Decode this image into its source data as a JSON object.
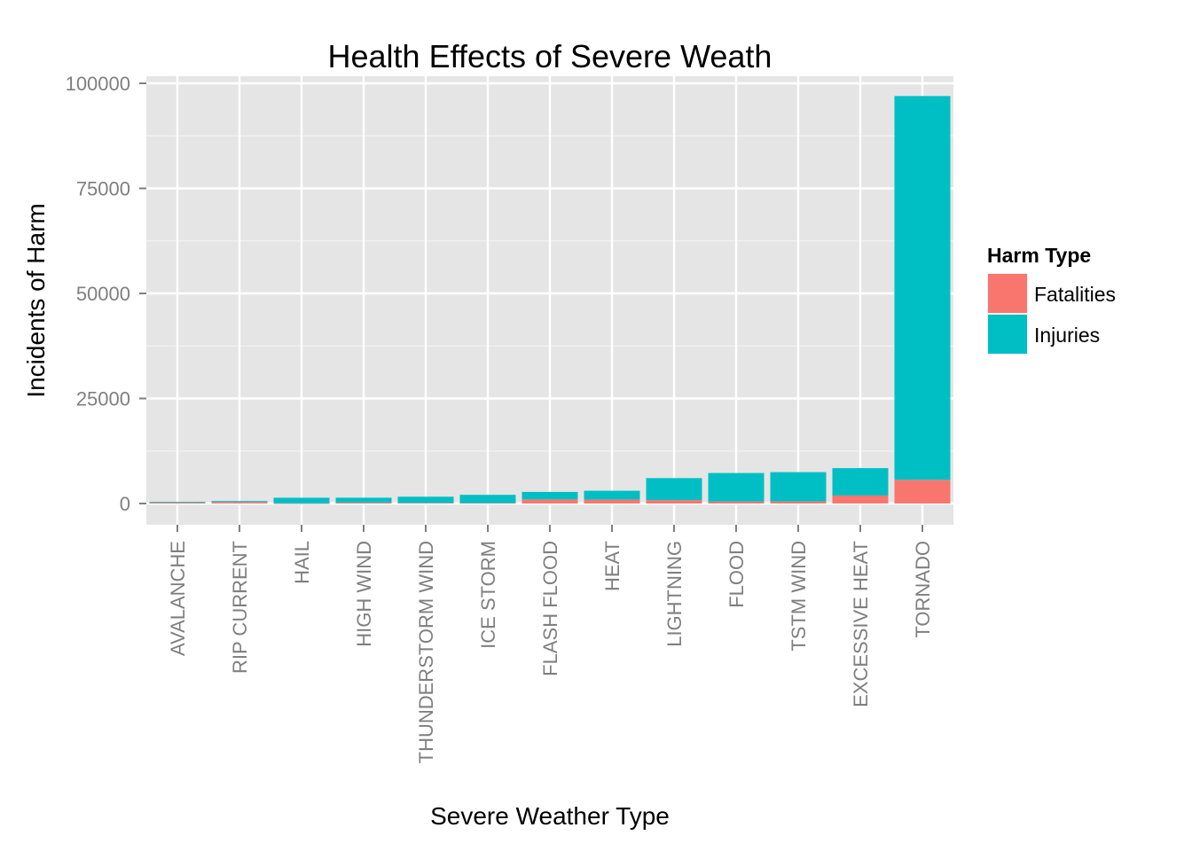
{
  "chart_data": {
    "type": "bar",
    "stacked": true,
    "title": "Health Effects of Severe Weath",
    "xlabel": "Severe Weather Type",
    "ylabel": "Incidents of Harm",
    "ylim": [
      -5000,
      103000
    ],
    "yticks": [
      0,
      25000,
      50000,
      75000,
      100000
    ],
    "yticklabels": [
      "0",
      "25000",
      "50000",
      "75000",
      "100000"
    ],
    "grid": true,
    "legend": {
      "title": "Harm Type",
      "position": "right"
    },
    "categories": [
      "AVALANCHE",
      "RIP CURRENT",
      "HAIL",
      "HIGH WIND",
      "THUNDERSTORM WIND",
      "ICE STORM",
      "FLASH FLOOD",
      "HEAT",
      "LIGHTNING",
      "FLOOD",
      "TSTM WIND",
      "EXCESSIVE HEAT",
      "TORNADO"
    ],
    "series": [
      {
        "name": "Fatalities",
        "color": "#F8766D",
        "values": [
          224,
          368,
          15,
          248,
          133,
          89,
          978,
          937,
          816,
          470,
          504,
          1903,
          5633
        ]
      },
      {
        "name": "Injuries",
        "color": "#00BFC4",
        "values": [
          170,
          232,
          1361,
          1137,
          1488,
          1975,
          1777,
          2100,
          5230,
          6789,
          6957,
          6525,
          91346
        ]
      }
    ]
  }
}
